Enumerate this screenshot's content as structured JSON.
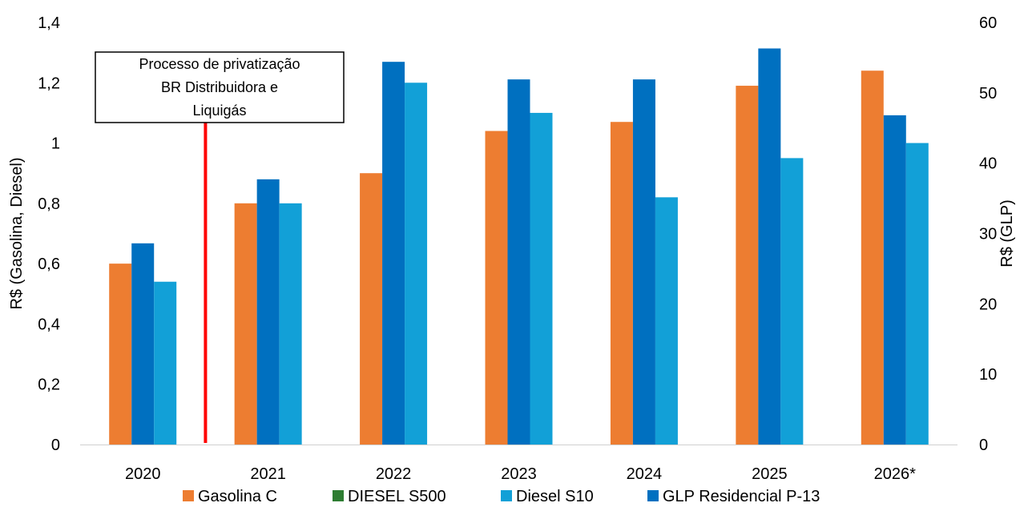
{
  "chart_data": {
    "type": "bar",
    "categories": [
      "2020",
      "2021",
      "2022",
      "2023",
      "2024",
      "2025",
      "2026*"
    ],
    "series": [
      {
        "name": "Gasolina C",
        "axis": "left",
        "color": "#ED7D31",
        "values": [
          0.6,
          0.8,
          0.9,
          1.04,
          1.07,
          1.19,
          1.24
        ]
      },
      {
        "name": "DIESEL S500",
        "axis": "left",
        "color": "#2E7D32",
        "values": [
          null,
          null,
          null,
          null,
          null,
          null,
          null
        ]
      },
      {
        "name": "GLP Residencial P-13",
        "axis": "right",
        "color": "#0070C0",
        "values": [
          28.6,
          37.7,
          54.4,
          51.9,
          51.9,
          56.3,
          46.8
        ]
      },
      {
        "name": "Diesel S10",
        "axis": "left",
        "color": "#12A0D7",
        "values": [
          0.54,
          0.8,
          1.2,
          1.1,
          0.82,
          0.95,
          1.0
        ]
      }
    ],
    "legend_order": [
      "Gasolina C",
      "DIESEL S500",
      "Diesel S10",
      "GLP Residencial P-13"
    ],
    "ylabel_left": "R$ (Gasolina, Diesel)",
    "ylabel_right": "R$ (GLP)",
    "ylim_left": [
      0,
      1.4
    ],
    "ylim_right": [
      0,
      60
    ],
    "yticks_left": [
      "0",
      "0,2",
      "0,4",
      "0,6",
      "0,8",
      "1",
      "1,2",
      "1,4"
    ],
    "yticks_right": [
      "0",
      "10",
      "20",
      "30",
      "40",
      "50",
      "60"
    ],
    "grid": false,
    "legend_position": "bottom",
    "annotation": {
      "text_lines": [
        "Processo de privatização",
        "BR Distribuidora e",
        "Liquigás"
      ],
      "marker_color": "#FF0000",
      "marker_between": [
        "2020",
        "2021"
      ]
    }
  }
}
